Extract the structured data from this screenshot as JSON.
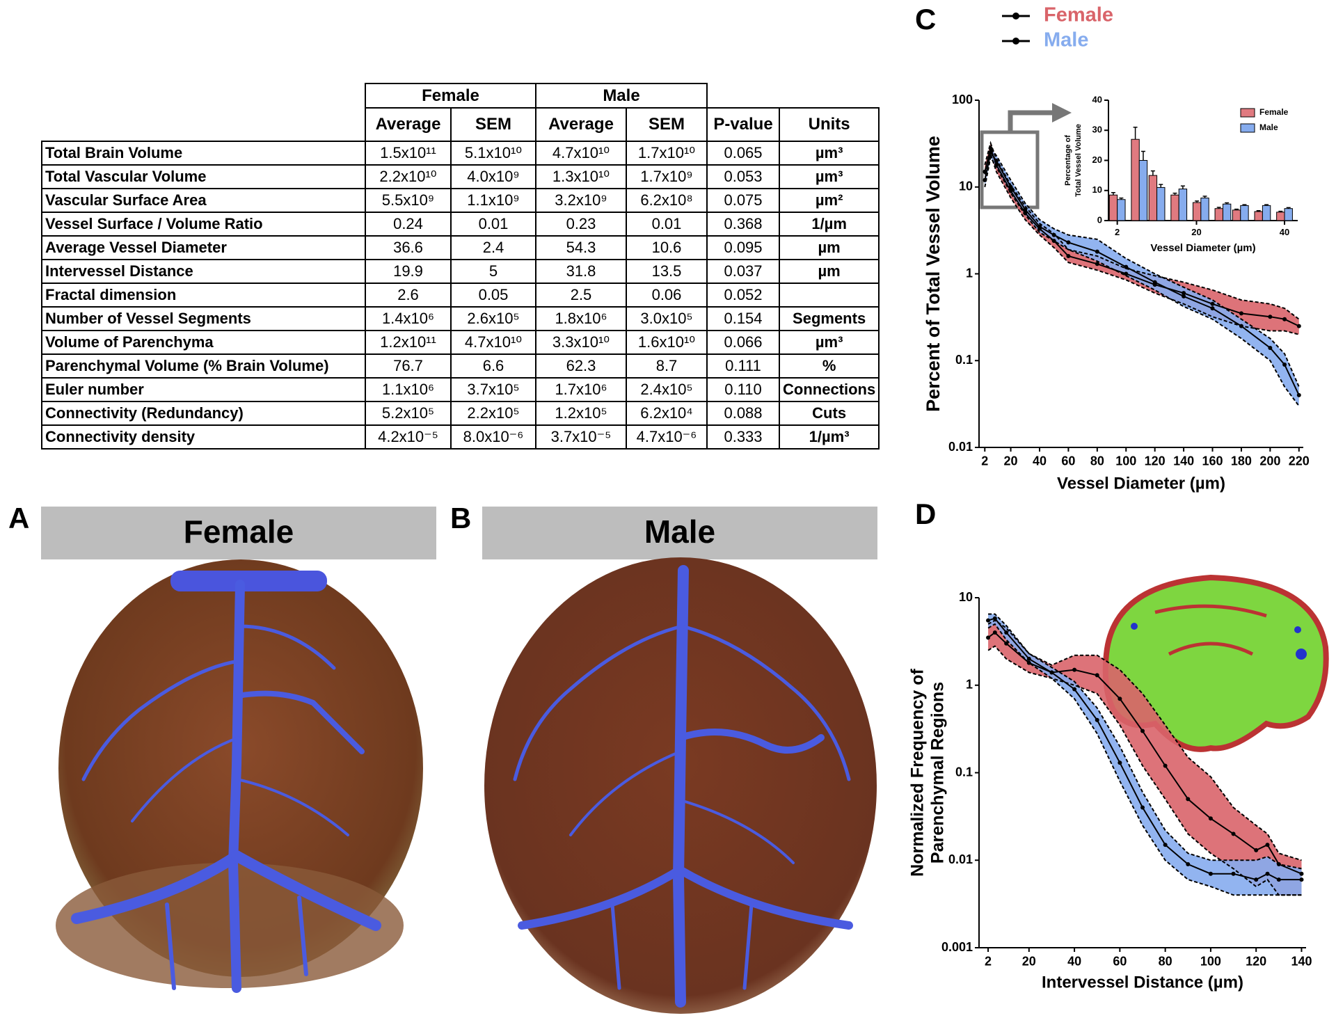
{
  "table": {
    "groups": [
      "Female",
      "Male"
    ],
    "columns": [
      "Average",
      "SEM",
      "Average",
      "SEM",
      "P-value",
      "Units"
    ],
    "rows": [
      {
        "label": "Total Brain Volume",
        "cells": [
          "1.5x10¹¹",
          "5.1x10¹⁰",
          "4.7x10¹⁰",
          "1.7x10¹⁰",
          "0.065",
          "µm³"
        ]
      },
      {
        "label": "Total Vascular Volume",
        "cells": [
          "2.2x10¹⁰",
          "4.0x10⁹",
          "1.3x10¹⁰",
          "1.7x10⁹",
          "0.053",
          "µm³"
        ]
      },
      {
        "label": "Vascular Surface Area",
        "cells": [
          "5.5x10⁹",
          "1.1x10⁹",
          "3.2x10⁹",
          "6.2x10⁸",
          "0.075",
          "µm²"
        ]
      },
      {
        "label": "Vessel Surface / Volume Ratio",
        "cells": [
          "0.24",
          "0.01",
          "0.23",
          "0.01",
          "0.368",
          "1/µm"
        ]
      },
      {
        "label": "Average Vessel Diameter",
        "cells": [
          "36.6",
          "2.4",
          "54.3",
          "10.6",
          "0.095",
          "µm"
        ]
      },
      {
        "label": "Intervessel Distance",
        "cells": [
          "19.9",
          "5",
          "31.8",
          "13.5",
          "0.037",
          "µm"
        ]
      },
      {
        "label": "Fractal dimension",
        "cells": [
          "2.6",
          "0.05",
          "2.5",
          "0.06",
          "0.052",
          null
        ]
      },
      {
        "label": "Number of Vessel Segments",
        "cells": [
          "1.4x10⁶",
          "2.6x10⁵",
          "1.8x10⁶",
          "3.0x10⁵",
          "0.154",
          "Segments"
        ]
      },
      {
        "label": "Volume of Parenchyma",
        "cells": [
          "1.2x10¹¹",
          "4.7x10¹⁰",
          "3.3x10¹⁰",
          "1.6x10¹⁰",
          "0.066",
          "µm³"
        ]
      },
      {
        "label": "Parenchymal Volume (% Brain Volume)",
        "cells": [
          "76.7",
          "6.6",
          "62.3",
          "8.7",
          "0.111",
          "%"
        ]
      },
      {
        "label": "Euler number",
        "cells": [
          "1.1x10⁶",
          "3.7x10⁵",
          "1.7x10⁶",
          "2.4x10⁵",
          "0.110",
          "Connections"
        ]
      },
      {
        "label": "Connectivity (Redundancy)",
        "cells": [
          "5.2x10⁵",
          "2.2x10⁵",
          "1.2x10⁵",
          "6.2x10⁴",
          "0.088",
          "Cuts"
        ]
      },
      {
        "label": "Connectivity density",
        "cells": [
          "4.2x10⁻⁵",
          "8.0x10⁻⁶",
          "3.7x10⁻⁵",
          "4.7x10⁻⁶",
          "0.333",
          "1/µm³"
        ]
      }
    ]
  },
  "panels": [
    {
      "label": "A",
      "title": "Female"
    },
    {
      "label": "B",
      "title": "Male"
    }
  ],
  "chart_data": [
    {
      "type": "line",
      "panel": "C",
      "xlabel": "Vessel Diameter (µm)",
      "ylabel": "Percent of Total Vessel Volume",
      "yscale": "log",
      "xlim": [
        -2,
        223
      ],
      "ylim": [
        0.01,
        100
      ],
      "xticks": [
        2,
        20,
        40,
        60,
        80,
        100,
        120,
        140,
        160,
        180,
        200,
        220
      ],
      "yticks": [
        0.01,
        0.1,
        1,
        10,
        100
      ],
      "legend": "top",
      "x": [
        2,
        6,
        10,
        20,
        30,
        40,
        50,
        60,
        80,
        100,
        120,
        140,
        160,
        180,
        200,
        210,
        220
      ],
      "series": [
        {
          "name": "Female",
          "color": "#d9646a",
          "values": [
            15,
            28,
            18,
            9,
            5,
            3.3,
            2.4,
            1.6,
            1.3,
            1.0,
            0.75,
            0.6,
            0.45,
            0.35,
            0.32,
            0.3,
            0.25
          ],
          "upper": [
            18,
            32,
            21,
            10.5,
            6,
            3.8,
            2.9,
            1.9,
            1.6,
            1.15,
            0.95,
            0.8,
            0.65,
            0.5,
            0.45,
            0.4,
            0.3
          ],
          "lower": [
            12,
            24,
            15,
            7.5,
            4.2,
            2.8,
            2,
            1.35,
            1.1,
            0.85,
            0.6,
            0.45,
            0.32,
            0.25,
            0.22,
            0.22,
            0.2
          ]
        },
        {
          "name": "Male",
          "color": "#86acee",
          "values": [
            12,
            25,
            20,
            10,
            5.5,
            3.5,
            2.8,
            2.3,
            1.8,
            1.2,
            0.8,
            0.55,
            0.4,
            0.25,
            0.14,
            0.09,
            0.04
          ],
          "upper": [
            14,
            28,
            23,
            12,
            6.5,
            4.2,
            3.3,
            2.8,
            2.5,
            1.5,
            1.0,
            0.7,
            0.5,
            0.3,
            0.18,
            0.12,
            0.05
          ],
          "lower": [
            10,
            22,
            17,
            8.5,
            4.8,
            3,
            2.4,
            1.9,
            1.4,
            0.95,
            0.65,
            0.42,
            0.3,
            0.18,
            0.1,
            0.05,
            0.03
          ]
        }
      ]
    },
    {
      "type": "bar",
      "xlabel": "Vessel Diameter (µm)",
      "ylabel": [
        "Percentage of",
        "Total Vessel Volume"
      ],
      "xlim": [
        0,
        43
      ],
      "ylim": [
        0,
        40
      ],
      "xticks": [
        2,
        20,
        40
      ],
      "yticks": [
        0,
        10,
        20,
        30,
        40
      ],
      "legend": "upper right",
      "x": [
        2,
        7,
        11,
        16,
        21,
        26,
        30,
        35,
        40
      ],
      "series": [
        {
          "name": "Female",
          "color": "#e07a80",
          "values": [
            8.5,
            27,
            15,
            8.5,
            6,
            4,
            3.5,
            3,
            2.8
          ],
          "errors": [
            0.8,
            4,
            1.5,
            0.6,
            0.5,
            0.4,
            0.3,
            0.3,
            0.3
          ]
        },
        {
          "name": "Male",
          "color": "#86acee",
          "values": [
            7,
            20,
            11,
            10.5,
            7.5,
            5.5,
            5,
            5,
            4
          ],
          "errors": [
            0.5,
            3,
            1,
            1,
            0.6,
            0.4,
            0.3,
            0.3,
            0.3
          ]
        }
      ]
    },
    {
      "type": "line",
      "panel": "D",
      "xlabel": "Intervessel Distance (µm)",
      "ylabel": [
        "Normalized Frequency of",
        "Parenchymal Regions"
      ],
      "yscale": "log",
      "xlim": [
        -2,
        142
      ],
      "ylim": [
        0.001,
        10
      ],
      "xticks": [
        2,
        20,
        40,
        60,
        80,
        100,
        120,
        140
      ],
      "yticks": [
        0.001,
        0.01,
        0.1,
        1,
        10
      ],
      "x": [
        2,
        5,
        10,
        20,
        30,
        40,
        50,
        60,
        70,
        80,
        90,
        100,
        110,
        120,
        125,
        130,
        140
      ],
      "series": [
        {
          "color": "#d9646a",
          "values": [
            3.5,
            4,
            3,
            1.8,
            1.4,
            1.5,
            1.3,
            0.7,
            0.3,
            0.12,
            0.05,
            0.03,
            0.02,
            0.013,
            0.015,
            0.009,
            0.007
          ],
          "upper": [
            5,
            5.5,
            4.5,
            2.3,
            1.7,
            2.2,
            2.2,
            1.5,
            0.8,
            0.35,
            0.15,
            0.09,
            0.04,
            0.025,
            0.02,
            0.012,
            0.01
          ],
          "lower": [
            2.5,
            2.8,
            2,
            1.4,
            1.2,
            1,
            0.8,
            0.35,
            0.12,
            0.05,
            0.02,
            0.012,
            0.008,
            0.005,
            0.006,
            0.004,
            0.004
          ]
        },
        {
          "color": "#86acee",
          "values": [
            5.5,
            5.8,
            4,
            2,
            1.4,
            0.9,
            0.4,
            0.13,
            0.04,
            0.015,
            0.009,
            0.007,
            0.007,
            0.006,
            0.007,
            0.006,
            0.006
          ],
          "upper": [
            6.5,
            6.5,
            4.8,
            2.3,
            1.6,
            1.1,
            0.55,
            0.2,
            0.06,
            0.022,
            0.012,
            0.01,
            0.01,
            0.01,
            0.011,
            0.009,
            0.008
          ],
          "lower": [
            4.5,
            5,
            3.3,
            1.8,
            1.2,
            0.7,
            0.28,
            0.08,
            0.025,
            0.01,
            0.006,
            0.005,
            0.004,
            0.004,
            0.004,
            0.004,
            0.004
          ]
        }
      ]
    }
  ]
}
